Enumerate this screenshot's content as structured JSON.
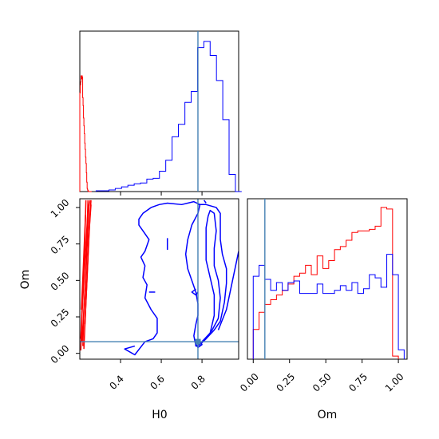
{
  "chart_data": [
    {
      "panel": "H0 marginal",
      "type": "histogram",
      "xlim": [
        0.2,
        0.98
      ],
      "truth_value": 0.78,
      "series": [
        {
          "color": "#ff0000",
          "bin_edges": [
            0.2,
            0.202,
            0.204,
            0.206,
            0.208,
            0.21,
            0.212,
            0.214,
            0.216,
            0.218,
            0.22,
            0.222,
            0.224,
            0.226,
            0.228,
            0.23,
            0.232,
            0.234,
            0.236,
            0.238,
            0.24,
            0.242,
            0.244,
            0.246,
            0.248,
            0.25,
            0.252,
            0.254,
            0.256,
            0.258
          ],
          "values": [
            0.63,
            0.68,
            0.7,
            0.74,
            0.72,
            0.74,
            0.73,
            0.6,
            0.55,
            0.47,
            0.42,
            0.37,
            0.31,
            0.27,
            0.22,
            0.18,
            0.12,
            0.06,
            0.02,
            0.01,
            0.005,
            0,
            0,
            0,
            0,
            0,
            0,
            0,
            0
          ]
        },
        {
          "color": "#0000ff",
          "bin_edges": [
            0.28,
            0.312,
            0.343,
            0.374,
            0.405,
            0.436,
            0.467,
            0.498,
            0.529,
            0.56,
            0.591,
            0.622,
            0.653,
            0.684,
            0.716,
            0.747,
            0.778,
            0.809,
            0.84,
            0.871,
            0.902,
            0.933,
            0.964,
            0.995
          ],
          "values": [
            0.005,
            0.005,
            0.01,
            0.02,
            0.03,
            0.04,
            0.05,
            0.055,
            0.08,
            0.085,
            0.13,
            0.2,
            0.35,
            0.43,
            0.57,
            0.64,
            0.92,
            0.96,
            0.87,
            0.71,
            0.46,
            0.11,
            0.0
          ]
        }
      ]
    },
    {
      "panel": "H0 vs Om joint",
      "type": "contour",
      "xlabel": "H0",
      "ylabel": "Om",
      "xlim": [
        0.2,
        0.98
      ],
      "ylim": [
        -0.04,
        1.06
      ],
      "xticks": [
        "0.4",
        "0.6",
        "0.8"
      ],
      "xtick_values": [
        0.4,
        0.6,
        0.8
      ],
      "yticks": [
        "0.00",
        "0.25",
        "0.50",
        "0.75",
        "1.00"
      ],
      "ytick_values": [
        0.0,
        0.25,
        0.5,
        0.75,
        1.0
      ],
      "truth": {
        "x": 0.78,
        "y": 0.08
      },
      "series": [
        {
          "color": "#0000ff",
          "contours": [
            [
              [
                0.47,
                0.05
              ],
              [
                0.42,
                0.03
              ],
              [
                0.47,
                -0.01
              ],
              [
                0.52,
                0.08
              ],
              [
                0.56,
                0.1
              ],
              [
                0.58,
                0.14
              ],
              [
                0.58,
                0.24
              ],
              [
                0.55,
                0.3
              ],
              [
                0.52,
                0.38
              ],
              [
                0.53,
                0.47
              ],
              [
                0.51,
                0.52
              ],
              [
                0.52,
                0.6
              ],
              [
                0.5,
                0.66
              ],
              [
                0.52,
                0.7
              ],
              [
                0.54,
                0.78
              ],
              [
                0.52,
                0.82
              ],
              [
                0.49,
                0.88
              ],
              [
                0.49,
                0.92
              ],
              [
                0.51,
                0.96
              ],
              [
                0.55,
                1.0
              ],
              [
                0.59,
                1.02
              ],
              [
                0.63,
                1.03
              ],
              [
                0.7,
                1.02
              ],
              [
                0.76,
                1.04
              ],
              [
                0.79,
                1.02
              ],
              [
                0.78,
                0.96
              ],
              [
                0.75,
                0.88
              ],
              [
                0.73,
                0.78
              ],
              [
                0.72,
                0.68
              ],
              [
                0.73,
                0.58
              ],
              [
                0.75,
                0.5
              ],
              [
                0.77,
                0.42
              ],
              [
                0.78,
                0.34
              ],
              [
                0.78,
                0.26
              ],
              [
                0.77,
                0.2
              ],
              [
                0.76,
                0.12
              ],
              [
                0.77,
                0.05
              ],
              [
                0.79,
                0.06
              ],
              [
                0.82,
                0.1
              ],
              [
                0.86,
                0.16
              ],
              [
                0.89,
                0.22
              ],
              [
                0.91,
                0.35
              ],
              [
                0.92,
                0.48
              ],
              [
                0.92,
                0.58
              ],
              [
                0.9,
                0.68
              ],
              [
                0.89,
                0.78
              ],
              [
                0.89,
                0.9
              ],
              [
                0.89,
                0.96
              ],
              [
                0.87,
                1.0
              ],
              [
                0.82,
                1.02
              ],
              [
                0.78,
                1.02
              ]
            ],
            [
              [
                0.8,
                0.08
              ],
              [
                0.84,
                0.14
              ],
              [
                0.86,
                0.26
              ],
              [
                0.86,
                0.4
              ],
              [
                0.84,
                0.52
              ],
              [
                0.82,
                0.64
              ],
              [
                0.82,
                0.74
              ],
              [
                0.82,
                0.86
              ],
              [
                0.83,
                0.94
              ],
              [
                0.84,
                0.98
              ],
              [
                0.86,
                0.96
              ],
              [
                0.87,
                0.84
              ],
              [
                0.86,
                0.72
              ],
              [
                0.86,
                0.6
              ],
              [
                0.88,
                0.5
              ],
              [
                0.89,
                0.38
              ],
              [
                0.88,
                0.24
              ],
              [
                0.85,
                0.16
              ],
              [
                0.82,
                0.1
              ],
              [
                0.8,
                0.08
              ]
            ],
            [
              [
                0.77,
                0.06
              ],
              [
                0.78,
                0.04
              ],
              [
                0.8,
                0.06
              ],
              [
                0.79,
                0.08
              ],
              [
                0.77,
                0.06
              ]
            ],
            [
              [
                0.88,
                0.16
              ],
              [
                0.92,
                0.3
              ],
              [
                0.95,
                0.5
              ],
              [
                0.98,
                0.7
              ]
            ],
            [
              [
                0.63,
                0.79
              ],
              [
                0.63,
                0.71
              ]
            ],
            [
              [
                0.54,
                0.42
              ],
              [
                0.57,
                0.42
              ]
            ],
            [
              [
                0.77,
                0.44
              ],
              [
                0.75,
                0.42
              ],
              [
                0.77,
                0.4
              ],
              [
                0.78,
                0.42
              ]
            ],
            [
              [
                0.81,
                1.05
              ],
              [
                0.82,
                1.03
              ]
            ]
          ]
        },
        {
          "color": "#ff0000",
          "contours": [
            [
              [
                0.205,
                0.02
              ],
              [
                0.21,
                0.25
              ],
              [
                0.22,
                0.5
              ],
              [
                0.23,
                0.75
              ],
              [
                0.24,
                0.98
              ],
              [
                0.25,
                1.05
              ]
            ],
            [
              [
                0.215,
                0.05
              ],
              [
                0.22,
                0.3
              ],
              [
                0.23,
                0.55
              ],
              [
                0.235,
                0.8
              ],
              [
                0.24,
                1.05
              ]
            ],
            [
              [
                0.21,
                0.08
              ],
              [
                0.225,
                0.4
              ],
              [
                0.235,
                0.7
              ],
              [
                0.245,
                1.02
              ]
            ],
            [
              [
                0.22,
                0.03
              ],
              [
                0.23,
                0.35
              ],
              [
                0.24,
                0.65
              ],
              [
                0.25,
                0.95
              ],
              [
                0.255,
                1.05
              ]
            ],
            [
              [
                0.205,
                0.1
              ],
              [
                0.215,
                0.45
              ],
              [
                0.225,
                0.8
              ],
              [
                0.23,
                1.05
              ]
            ],
            [
              [
                0.225,
                0.2
              ],
              [
                0.235,
                0.5
              ],
              [
                0.245,
                0.82
              ],
              [
                0.255,
                1.02
              ]
            ],
            [
              [
                0.208,
                0.3
              ],
              [
                0.218,
                0.62
              ],
              [
                0.228,
                0.95
              ]
            ]
          ]
        }
      ]
    },
    {
      "panel": "Om marginal",
      "type": "histogram",
      "xlabel": "Om",
      "xlim": [
        -0.04,
        1.06
      ],
      "xticks": [
        "0.00",
        "0.25",
        "0.50",
        "0.75",
        "1.00"
      ],
      "xtick_values": [
        0.0,
        0.25,
        0.5,
        0.75,
        1.0
      ],
      "truth_value": 0.08,
      "series": [
        {
          "color": "#ff0000",
          "bin_edges": [
            0.0,
            0.04,
            0.08,
            0.12,
            0.16,
            0.2,
            0.24,
            0.28,
            0.32,
            0.36,
            0.4,
            0.44,
            0.48,
            0.52,
            0.56,
            0.6,
            0.64,
            0.68,
            0.72,
            0.76,
            0.8,
            0.84,
            0.88,
            0.92,
            0.96,
            1.0
          ],
          "values": [
            0.19,
            0.3,
            0.35,
            0.38,
            0.41,
            0.44,
            0.48,
            0.53,
            0.55,
            0.6,
            0.54,
            0.66,
            0.58,
            0.63,
            0.7,
            0.72,
            0.76,
            0.81,
            0.82,
            0.82,
            0.83,
            0.85,
            0.97,
            0.96,
            0.02
          ]
        },
        {
          "color": "#0000ff",
          "bin_edges": [
            0.0,
            0.04,
            0.08,
            0.12,
            0.16,
            0.2,
            0.24,
            0.28,
            0.32,
            0.36,
            0.4,
            0.44,
            0.48,
            0.52,
            0.56,
            0.6,
            0.64,
            0.68,
            0.72,
            0.76,
            0.8,
            0.84,
            0.88,
            0.92,
            0.96,
            1.0,
            1.04
          ],
          "values": [
            0.53,
            0.6,
            0.51,
            0.44,
            0.49,
            0.44,
            0.49,
            0.5,
            0.42,
            0.42,
            0.42,
            0.48,
            0.42,
            0.42,
            0.44,
            0.47,
            0.44,
            0.49,
            0.42,
            0.45,
            0.54,
            0.52,
            0.46,
            0.67,
            0.54,
            0.06
          ]
        }
      ]
    }
  ]
}
